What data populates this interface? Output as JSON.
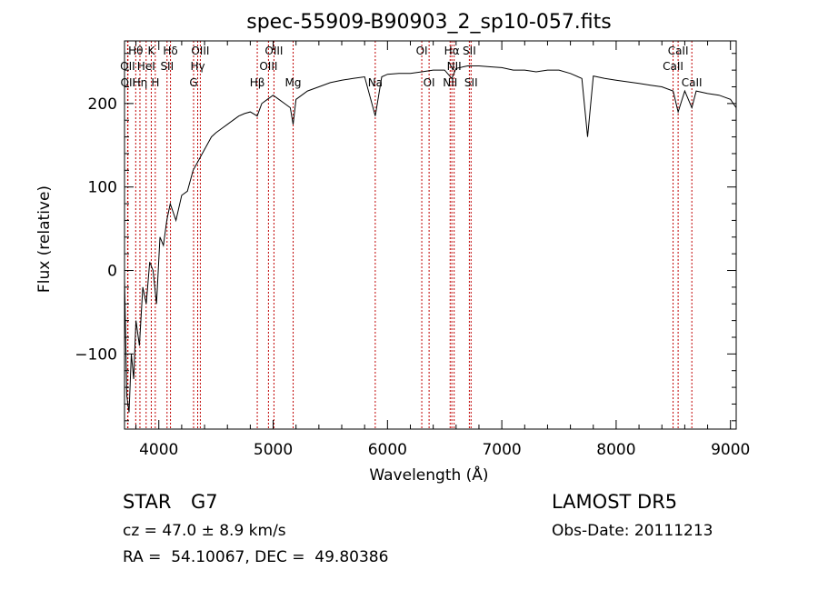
{
  "chart_data": {
    "type": "line",
    "title": "spec-55909-B90903_2_sp10-057.fits",
    "xlabel": "Wavelength (Å)",
    "ylabel": "Flux (relative)",
    "xlim": [
      3700,
      9050
    ],
    "ylim": [
      -190,
      275
    ],
    "x_ticks": [
      4000,
      5000,
      6000,
      7000,
      8000,
      9000
    ],
    "y_ticks": [
      -100,
      0,
      100,
      200
    ],
    "x_tick_labels": [
      "4000",
      "5000",
      "6000",
      "7000",
      "8000",
      "9000"
    ],
    "y_tick_labels": [
      "−100",
      "0",
      "100",
      "200"
    ],
    "series": [
      {
        "x": [
          3700,
          3720,
          3740,
          3760,
          3780,
          3800,
          3830,
          3860,
          3890,
          3920,
          3950,
          3980,
          4010,
          4040,
          4070,
          4100,
          4150,
          4200,
          4250,
          4300,
          4340,
          4380,
          4420,
          4460,
          4500,
          4550,
          4600,
          4650,
          4700,
          4750,
          4800,
          4861,
          4900,
          4950,
          5000,
          5050,
          5100,
          5150,
          5175,
          5200,
          5250,
          5300,
          5400,
          5500,
          5600,
          5700,
          5800,
          5893,
          5950,
          6000,
          6100,
          6200,
          6300,
          6400,
          6500,
          6563,
          6600,
          6700,
          6800,
          6900,
          7000,
          7100,
          7200,
          7300,
          7400,
          7500,
          7600,
          7700,
          7750,
          7800,
          7900,
          8000,
          8100,
          8200,
          8300,
          8400,
          8498,
          8542,
          8600,
          8662,
          8700,
          8800,
          8900,
          9000,
          9050
        ],
        "y": [
          -10,
          -150,
          -170,
          -100,
          -130,
          -60,
          -90,
          -20,
          -40,
          10,
          0,
          -40,
          40,
          30,
          60,
          80,
          60,
          90,
          95,
          120,
          130,
          140,
          150,
          160,
          165,
          170,
          175,
          180,
          185,
          188,
          190,
          185,
          200,
          205,
          210,
          205,
          200,
          195,
          175,
          205,
          210,
          215,
          220,
          225,
          228,
          230,
          232,
          185,
          232,
          235,
          236,
          236,
          238,
          240,
          240,
          230,
          242,
          245,
          245,
          244,
          243,
          240,
          240,
          238,
          240,
          240,
          236,
          230,
          160,
          233,
          230,
          228,
          226,
          224,
          222,
          220,
          215,
          190,
          215,
          195,
          215,
          212,
          210,
          205,
          195
        ],
        "color": "#000000"
      }
    ],
    "spectral_lines": [
      {
        "x": 3727,
        "label": "OII",
        "row": 1
      },
      {
        "x": 3730,
        "label": "OII",
        "row": 2
      },
      {
        "x": 3798,
        "label": "Hθ",
        "row": 0
      },
      {
        "x": 3835,
        "label": "Hη",
        "row": 2
      },
      {
        "x": 3889,
        "label": "HeI",
        "row": 1
      },
      {
        "x": 3934,
        "label": "K",
        "row": 0
      },
      {
        "x": 3969,
        "label": "H",
        "row": 2
      },
      {
        "x": 4072,
        "label": "SII",
        "row": 1
      },
      {
        "x": 4102,
        "label": "Hδ",
        "row": 0
      },
      {
        "x": 4304,
        "label": "G",
        "row": 2
      },
      {
        "x": 4340,
        "label": "Hγ",
        "row": 1
      },
      {
        "x": 4363,
        "label": "OIII",
        "row": 0
      },
      {
        "x": 4861,
        "label": "Hβ",
        "row": 2
      },
      {
        "x": 4959,
        "label": "OIII",
        "row": 1
      },
      {
        "x": 5007,
        "label": "OIII",
        "row": 0
      },
      {
        "x": 5175,
        "label": "Mg",
        "row": 2
      },
      {
        "x": 5893,
        "label": "Na",
        "row": 2
      },
      {
        "x": 6300,
        "label": "OI",
        "row": 0
      },
      {
        "x": 6364,
        "label": "OI",
        "row": 2
      },
      {
        "x": 6548,
        "label": "NII",
        "row": 2
      },
      {
        "x": 6563,
        "label": "Hα",
        "row": 0
      },
      {
        "x": 6583,
        "label": "NII",
        "row": 1
      },
      {
        "x": 6716,
        "label": "SII",
        "row": 0
      },
      {
        "x": 6731,
        "label": "SII",
        "row": 2
      },
      {
        "x": 8498,
        "label": "CaII",
        "row": 1
      },
      {
        "x": 8542,
        "label": "CaII",
        "row": 0
      },
      {
        "x": 8662,
        "label": "CaII",
        "row": 2
      }
    ]
  },
  "info": {
    "object_class": "STAR",
    "subclass": "G7",
    "survey": "LAMOST DR5",
    "cz": "cz = 47.0 ± 8.9 km/s",
    "obs_date": "Obs-Date: 20111213",
    "coords": "RA =  54.10067, DEC =  49.80386"
  }
}
